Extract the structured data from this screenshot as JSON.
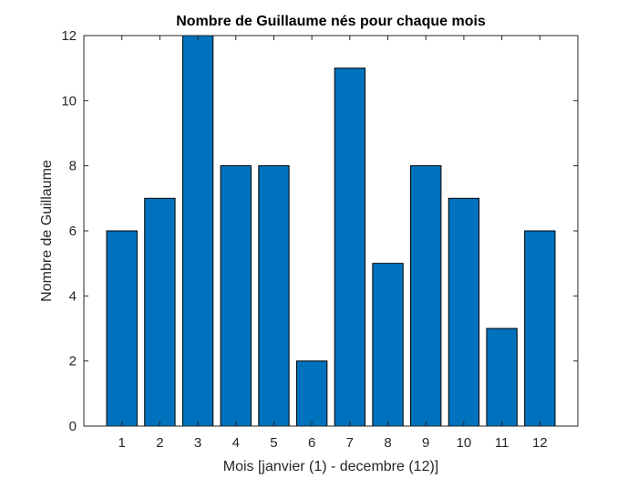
{
  "chart_data": {
    "type": "bar",
    "title": "Nombre de Guillaume nés pour chaque mois",
    "xlabel": "Mois [janvier (1) - decembre (12)]",
    "ylabel": "Nombre de Guillaume",
    "categories": [
      "1",
      "2",
      "3",
      "4",
      "5",
      "6",
      "7",
      "8",
      "9",
      "10",
      "11",
      "12"
    ],
    "values": [
      6,
      7,
      12,
      8,
      8,
      2,
      11,
      5,
      8,
      7,
      3,
      6
    ],
    "xlim": [
      0,
      13
    ],
    "ylim": [
      0,
      12
    ],
    "yticks": [
      "0",
      "2",
      "4",
      "6",
      "8",
      "10",
      "12"
    ],
    "bar_color": "#0072BD",
    "bar_edge_color": "#000000",
    "axis_color": "#262626",
    "grid": false,
    "legend": false
  }
}
